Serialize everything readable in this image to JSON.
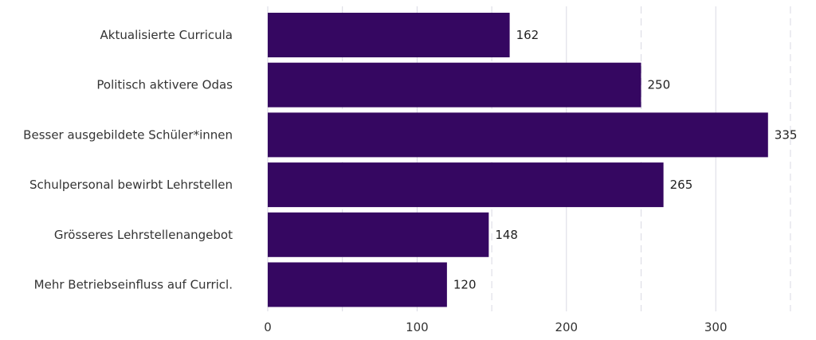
{
  "chart_data": {
    "type": "bar",
    "orientation": "horizontal",
    "categories": [
      "Aktualisierte Curricula",
      "Politisch aktivere Odas",
      "Besser ausgebildete Schüler*innen",
      "Schulpersonal bewirbt Lehrstellen",
      "Grösseres Lehrstellenangebot",
      "Mehr Betriebseinfluss auf Curricl."
    ],
    "values": [
      162,
      250,
      335,
      265,
      148,
      120
    ],
    "value_labels": [
      "162",
      "250",
      "335",
      "265",
      "148",
      "120"
    ],
    "title": "",
    "xlabel": "",
    "ylabel": "",
    "xlim": [
      0,
      355
    ],
    "x_ticks": [
      0,
      100,
      200,
      300
    ],
    "x_tick_labels": [
      "0",
      "100",
      "200",
      "300"
    ],
    "grid": true,
    "legend": "none",
    "bar_color": "#350761",
    "grid_color": "#d9d9e3"
  }
}
